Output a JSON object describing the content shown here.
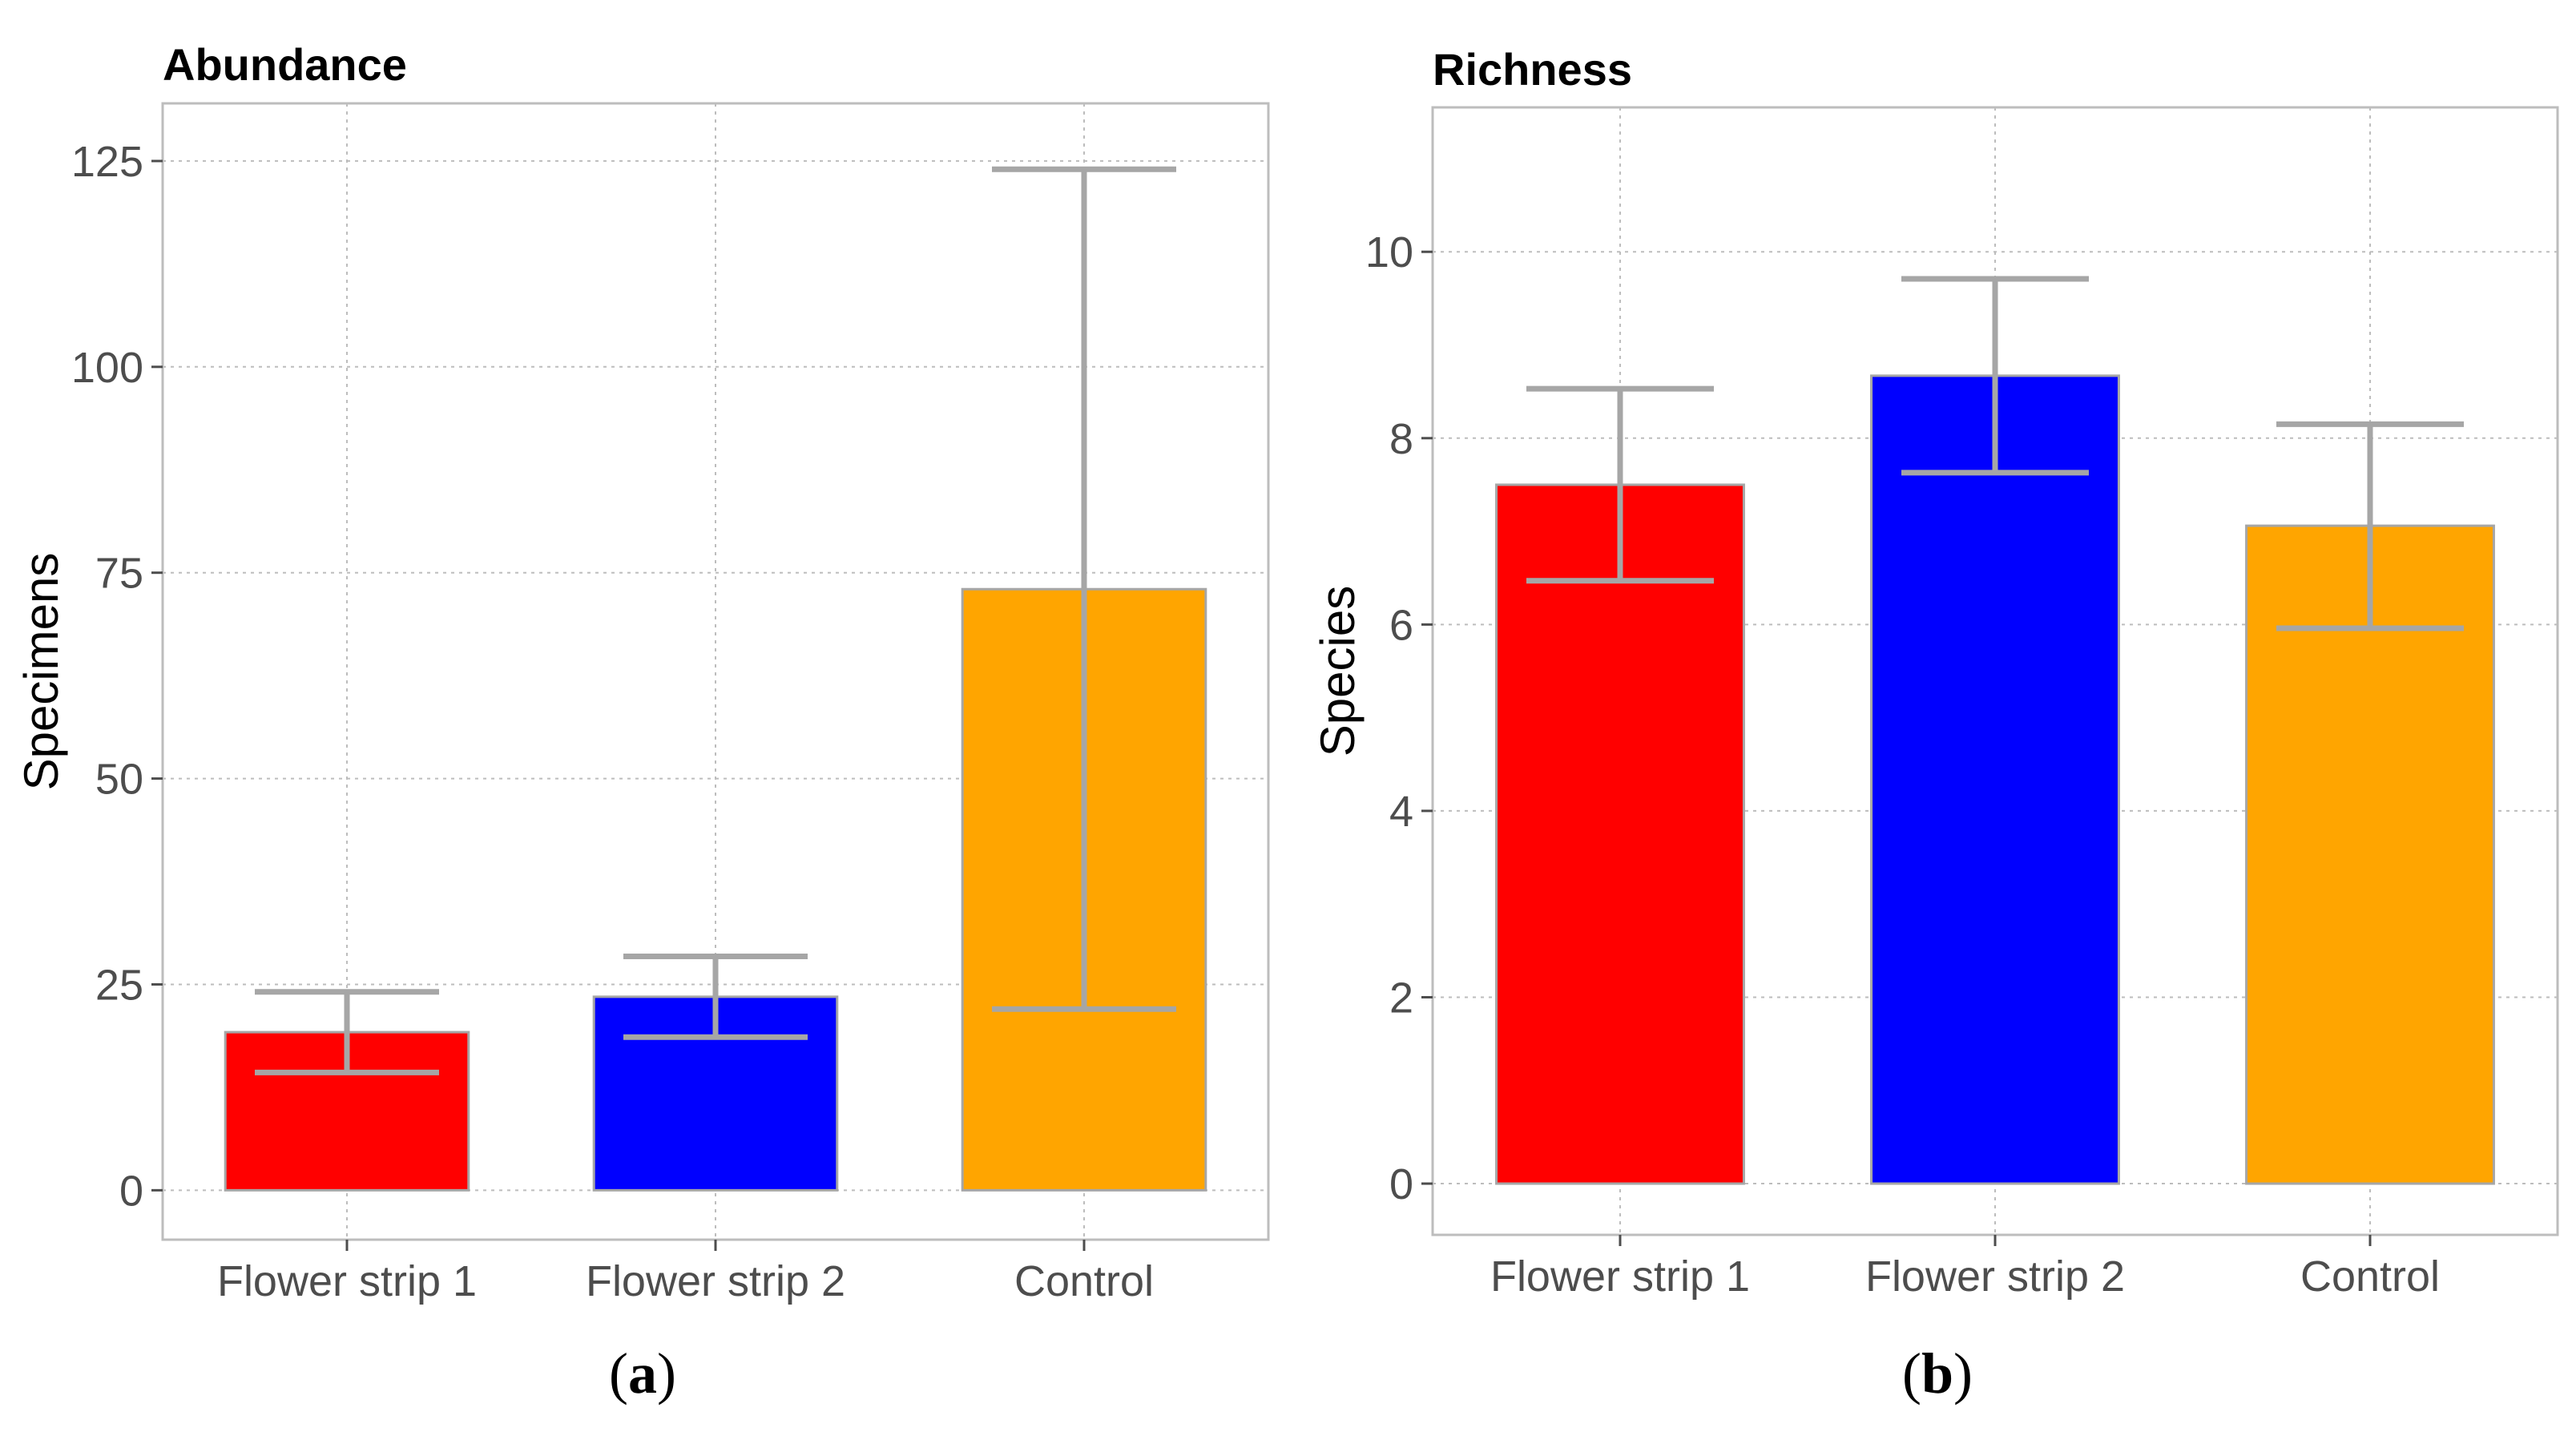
{
  "chart_data": [
    {
      "type": "bar",
      "title": "Abundance",
      "ylabel": "Specimens",
      "xlabel": "",
      "caption": "a",
      "categories": [
        "Flower strip 1",
        "Flower strip 2",
        "Control"
      ],
      "values": [
        19.2,
        23.5,
        73
      ],
      "error_low": [
        14.3,
        18.6,
        22
      ],
      "error_high": [
        24.1,
        28.4,
        124
      ],
      "colors": [
        "#ff0000",
        "#0000ff",
        "#ffa500"
      ],
      "ylim": [
        -6,
        132
      ],
      "yticks": [
        0,
        25,
        50,
        75,
        100,
        125
      ],
      "grid": true
    },
    {
      "type": "bar",
      "title": "Richness",
      "ylabel": "Species",
      "xlabel": "",
      "caption": "b",
      "categories": [
        "Flower strip 1",
        "Flower strip 2",
        "Control"
      ],
      "values": [
        7.5,
        8.67,
        7.06
      ],
      "error_low": [
        6.47,
        7.63,
        5.96
      ],
      "error_high": [
        8.53,
        9.71,
        8.15
      ],
      "colors": [
        "#ff0000",
        "#0000ff",
        "#ffa500"
      ],
      "ylim": [
        -0.55,
        11.55
      ],
      "yticks": [
        0,
        2,
        4,
        6,
        8,
        10
      ],
      "grid": true
    }
  ]
}
